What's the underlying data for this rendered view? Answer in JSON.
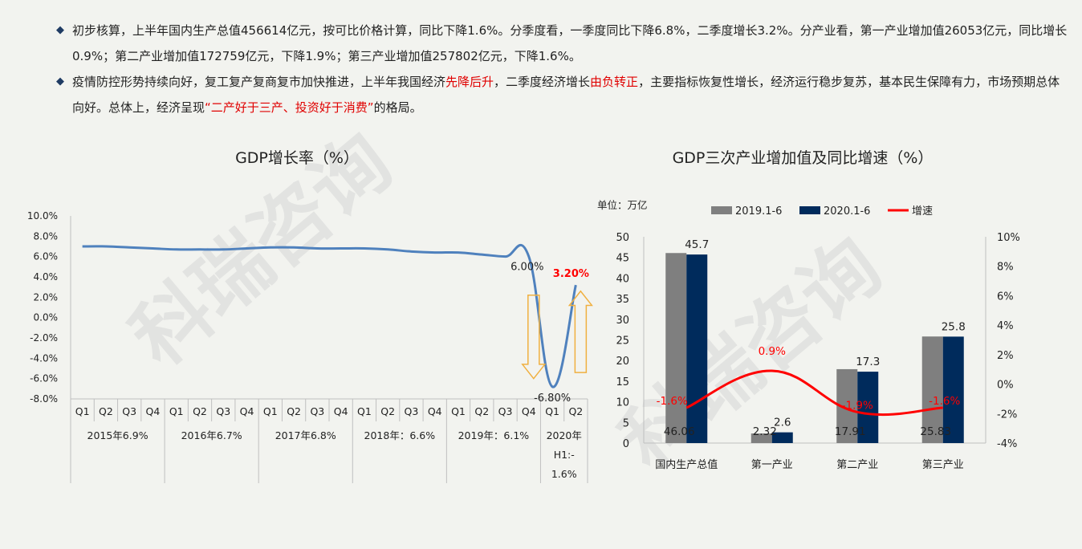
{
  "bullets": [
    {
      "parts": [
        {
          "text": "初步核算，上半年国内生产总值456614亿元，按可比价格计算，同比下降1.6%。分季度看，一季度同比下降6.8%，二季度增长3.2%。分产业看，第一产业增加值26053亿元，同比增长0.9%；第二产业增加值172759亿元，下降1.9%；第三产业增加值257802亿元，下降1.6%。",
          "red": false
        }
      ]
    },
    {
      "parts": [
        {
          "text": "疫情防控形势持续向好，复工复产复商复市加快推进，上半年我国经济",
          "red": false
        },
        {
          "text": "先降后升",
          "red": true
        },
        {
          "text": "，二季度经济增长",
          "red": false
        },
        {
          "text": "由负转正",
          "red": true
        },
        {
          "text": "，主要指标恢复性增长，经济运行稳步复苏，基本民生保障有力，市场预期总体向好。总体上，经济呈现",
          "red": false
        },
        {
          "text": "“二产好于三产、投资好于消费”",
          "red": true
        },
        {
          "text": "的格局。",
          "red": false
        }
      ]
    }
  ],
  "watermark": "科瑞咨询",
  "colors": {
    "line_blue": "#4f81bd",
    "bar_gray": "#7f7f7f",
    "bar_navy": "#002b5c",
    "growth_red": "#ff0000",
    "arrow_orange": "#f0b040",
    "bullet_diamond": "#1f3b63"
  },
  "chart_data": [
    {
      "type": "line",
      "title": "GDP增长率（%）",
      "yticks": [
        "10.0%",
        "8.0%",
        "6.0%",
        "4.0%",
        "2.0%",
        "0.0%",
        "-2.0%",
        "-4.0%",
        "-6.0%",
        "-8.0%"
      ],
      "ylim": [
        -8,
        10
      ],
      "quarters": [
        "Q1",
        "Q2",
        "Q3",
        "Q4",
        "Q1",
        "Q2",
        "Q3",
        "Q4",
        "Q1",
        "Q2",
        "Q3",
        "Q4",
        "Q1",
        "Q2",
        "Q3",
        "Q4",
        "Q1",
        "Q2",
        "Q3",
        "Q4",
        "Q1",
        "Q2"
      ],
      "year_groups": [
        {
          "label": "2015年6.9%",
          "count": 4
        },
        {
          "label": "2016年6.7%",
          "count": 4
        },
        {
          "label": "2017年6.8%",
          "count": 4
        },
        {
          "label": "2018年：6.6%",
          "count": 4
        },
        {
          "label": "2019年：6.1%",
          "count": 4
        },
        {
          "label": "2020年H1:-1.6%",
          "count": 2
        }
      ],
      "values": [
        7.0,
        7.0,
        6.9,
        6.8,
        6.7,
        6.7,
        6.7,
        6.8,
        6.9,
        6.9,
        6.8,
        6.8,
        6.8,
        6.7,
        6.5,
        6.4,
        6.4,
        6.2,
        6.0,
        6.0,
        -6.8,
        3.2
      ],
      "data_labels": [
        {
          "index": 19,
          "text": "6.00%",
          "red": false
        },
        {
          "index": 20,
          "text": "-6.80%",
          "red": false
        },
        {
          "index": 21,
          "text": "3.20%",
          "red": true
        }
      ]
    },
    {
      "type": "bar",
      "title": "GDP三次产业增加值及同比增速（%）",
      "unit": "单位：万亿",
      "categories": [
        "国内生产总值",
        "第一产业",
        "第二产业",
        "第三产业"
      ],
      "series": [
        {
          "name": "2019.1-6",
          "values": [
            46.06,
            2.32,
            17.91,
            25.83
          ]
        },
        {
          "name": "2020.1-6",
          "values": [
            45.7,
            2.6,
            17.3,
            25.8
          ]
        }
      ],
      "value_labels_2019": [
        "46.06",
        "2.32",
        "17.91",
        "25.83"
      ],
      "value_labels_2020": [
        "45.7",
        "2.6",
        "17.3",
        "25.8"
      ],
      "line_series": {
        "name": "增速",
        "values": [
          -1.6,
          0.9,
          -1.9,
          -1.6
        ],
        "labels": [
          "-1.6%",
          "0.9%",
          "-1.9%",
          "-1.6%"
        ]
      },
      "ylim_left": [
        0,
        50
      ],
      "yticks_left": [
        "0",
        "5",
        "10",
        "15",
        "20",
        "25",
        "30",
        "35",
        "40",
        "45",
        "50"
      ],
      "ylim_right": [
        -4,
        10
      ],
      "yticks_right": [
        "-4%",
        "-2%",
        "0%",
        "2%",
        "4%",
        "6%",
        "8%",
        "10%"
      ],
      "legend_position": "top"
    }
  ]
}
